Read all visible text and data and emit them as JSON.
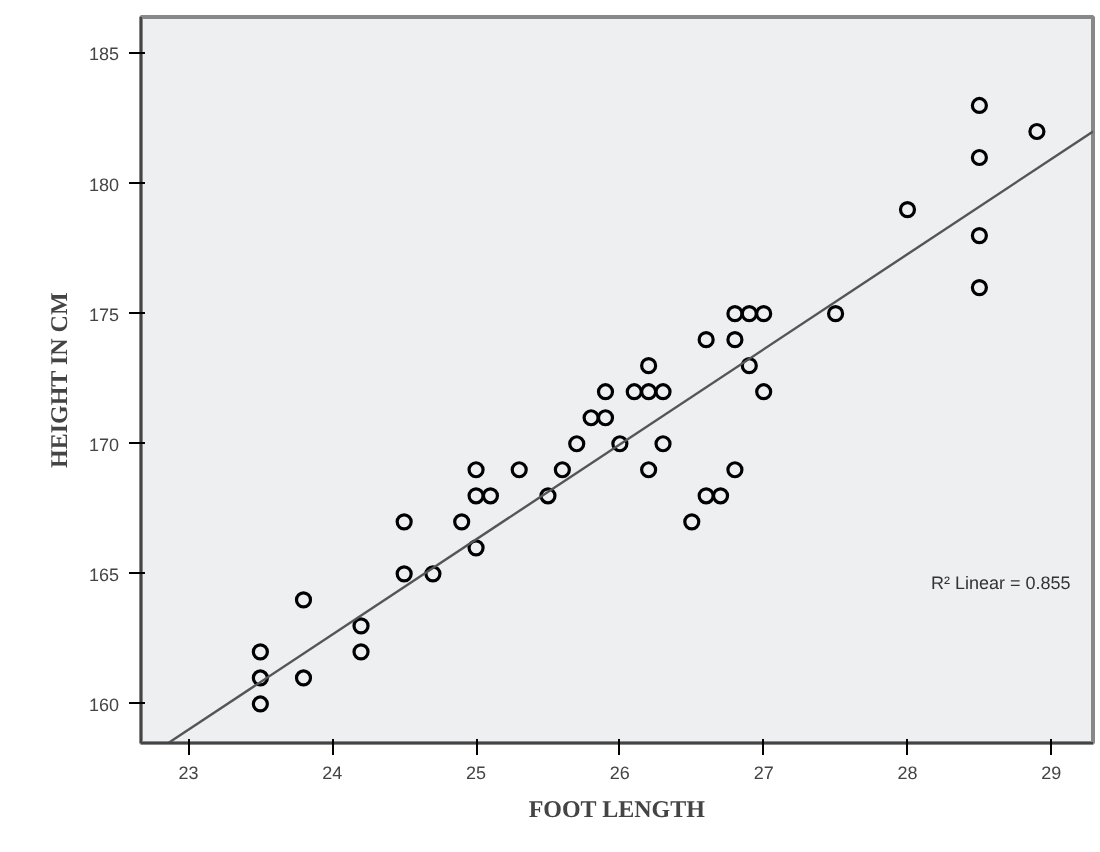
{
  "chart_data": {
    "type": "scatter",
    "xlabel": "FOOT LENGTH",
    "ylabel": "HEIGHT IN CM",
    "xlim": [
      22.67,
      29.29
    ],
    "ylim": [
      158.5,
      186.4
    ],
    "xticks": [
      23,
      24,
      25,
      26,
      27,
      28,
      29
    ],
    "yticks": [
      160,
      165,
      170,
      175,
      180,
      185
    ],
    "grid": false,
    "annotations": [
      "R² Linear = 0.855"
    ],
    "series": [
      {
        "marker": "circle",
        "color": "#000000",
        "x": [
          23.5,
          23.5,
          23.5,
          23.8,
          23.8,
          24.2,
          24.2,
          24.5,
          24.5,
          24.7,
          24.9,
          25,
          25,
          25,
          25.1,
          25.3,
          25.5,
          25.6,
          25.7,
          25.8,
          25.9,
          25.9,
          26,
          26.1,
          26.2,
          26.2,
          26.2,
          26.3,
          26.3,
          26.5,
          26.6,
          26.6,
          26.7,
          26.8,
          26.8,
          26.8,
          26.9,
          26.9,
          27,
          27,
          27.5,
          28,
          28.5,
          28.5,
          28.5,
          28.5,
          28.9
        ],
        "values": [
          162,
          161,
          160,
          164,
          161,
          163,
          162,
          167,
          165,
          165,
          167,
          169,
          168,
          166,
          168,
          169,
          168,
          169,
          170,
          171,
          171,
          172,
          170,
          172,
          172,
          173,
          169,
          172,
          170,
          167,
          174,
          168,
          168,
          174,
          175,
          169,
          175,
          173,
          175,
          172,
          175,
          179,
          183,
          181,
          178,
          176,
          182
        ]
      },
      {
        "type": "line",
        "marker": "none",
        "color": "#555555",
        "x": [
          22.86,
          29.29
        ],
        "values": [
          158.5,
          182.0
        ]
      }
    ]
  }
}
